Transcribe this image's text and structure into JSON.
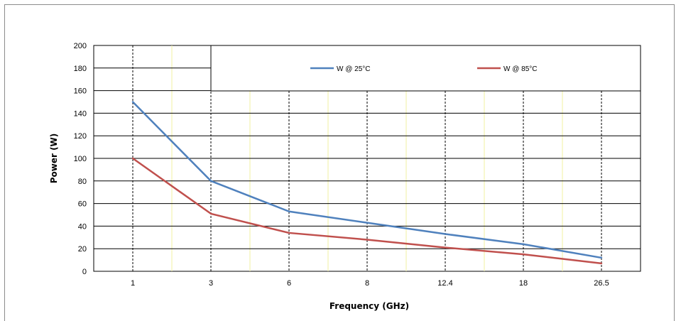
{
  "chart_data": {
    "type": "line",
    "title": "",
    "xlabel": "Frequency (GHz)",
    "ylabel": "Power (W)",
    "categories": [
      "1",
      "3",
      "6",
      "8",
      "12.4",
      "18",
      "26.5"
    ],
    "ylim": [
      0,
      200
    ],
    "yticks": [
      0,
      20,
      40,
      60,
      80,
      100,
      120,
      140,
      160,
      180,
      200
    ],
    "series": [
      {
        "name": "W @ 25°C",
        "color": "#4f81bd",
        "values": [
          150,
          80,
          53,
          43,
          33,
          24,
          12
        ]
      },
      {
        "name": "W @ 85°C",
        "color": "#c0504d",
        "values": [
          100,
          51,
          34,
          28,
          21,
          15,
          7
        ]
      }
    ],
    "grid": true,
    "legend_position": "top-right"
  }
}
